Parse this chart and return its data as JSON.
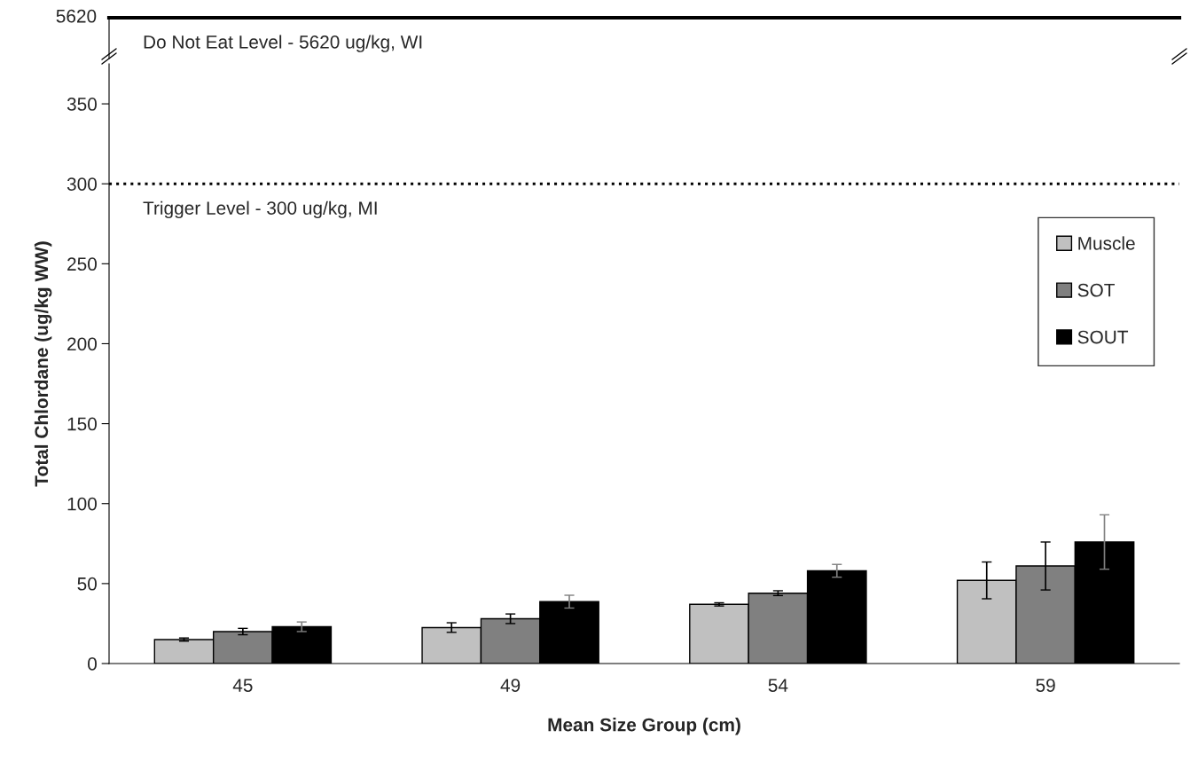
{
  "chart_data": [
    {
      "type": "other",
      "annotations": [
        "5620",
        "Do Not Eat Level - 5620 ug/kg, WI"
      ]
    },
    {
      "type": "bar",
      "xlabel": "Mean Size Group (cm)",
      "ylabel": "Total Chlordane (ug/kg WW)",
      "categories": [
        "45",
        "49",
        "54",
        "59"
      ],
      "series": [
        {
          "name": "Muscle",
          "color": "#c0c0c0",
          "values": [
            15,
            22.5,
            37,
            52
          ],
          "errors": [
            1,
            3,
            1,
            11.5
          ]
        },
        {
          "name": "SOT",
          "color": "#808080",
          "values": [
            20,
            28,
            44,
            61
          ],
          "errors": [
            2,
            3,
            1.5,
            15
          ]
        },
        {
          "name": "SOUT",
          "color": "#000000",
          "values": [
            23,
            38.7,
            58,
            76
          ],
          "errors": [
            3,
            4,
            4,
            17
          ]
        }
      ],
      "ylim": [
        0,
        375
      ],
      "yticks": [
        0,
        50,
        100,
        150,
        200,
        250,
        300,
        350
      ],
      "grid": false,
      "legend": "right",
      "ref_lines": [
        {
          "axis": "y",
          "value": 300,
          "label": "Trigger Level - 300 ug/kg, MI",
          "color": "#000000",
          "line_style": "dotted"
        }
      ]
    }
  ]
}
